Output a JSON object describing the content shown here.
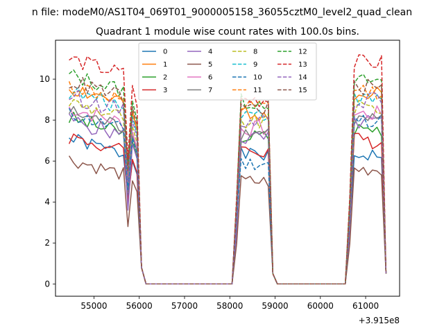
{
  "figure": {
    "suptitle": "n file: modeM0/AS1T04_069T01_9000005158_36055cztM0_level2_quad_clean",
    "title": "Quadrant 1 module wise count rates with 100.0s bins.",
    "x_offset_label": "+3.915e8"
  },
  "chart_data": {
    "type": "line",
    "title": "Quadrant 1 module wise count rates with 100.0s bins.",
    "xlabel": "",
    "ylabel": "",
    "x_offset": 391500000,
    "xlim": [
      54150,
      61750
    ],
    "ylim": [
      -0.6,
      11.9
    ],
    "xticks": [
      55000,
      56000,
      57000,
      58000,
      59000,
      60000,
      61000
    ],
    "xtick_labels": [
      "55000",
      "56000",
      "57000",
      "58000",
      "59000",
      "60000",
      "61000"
    ],
    "yticks": [
      0,
      2,
      4,
      6,
      8,
      10
    ],
    "ytick_labels": [
      "0",
      "2",
      "4",
      "6",
      "8",
      "10"
    ],
    "grid": false,
    "legend_position": "top-center",
    "legend_columns": 4,
    "segments": [
      {
        "start": 54450,
        "end": 56050
      },
      {
        "start": 58150,
        "end": 58950
      },
      {
        "start": 60650,
        "end": 61450
      }
    ],
    "series": [
      {
        "name": "0",
        "color": "#1f77b4",
        "dash": "solid",
        "means": [
          6.3,
          6.3,
          6.3
        ],
        "dip": 4.2,
        "amp": 0.35,
        "seed": 1
      },
      {
        "name": "1",
        "color": "#ff7f0e",
        "dash": "solid",
        "means": [
          8.8,
          8.4,
          9.2
        ],
        "dip": 5.6,
        "amp": 0.45,
        "seed": 2
      },
      {
        "name": "2",
        "color": "#2ca02c",
        "dash": "solid",
        "means": [
          7.3,
          7.2,
          7.6
        ],
        "dip": 4.5,
        "amp": 0.4,
        "seed": 3
      },
      {
        "name": "3",
        "color": "#d62728",
        "dash": "solid",
        "means": [
          6.4,
          6.5,
          7.0
        ],
        "dip": 4.0,
        "amp": 0.4,
        "seed": 4
      },
      {
        "name": "4",
        "color": "#9467bd",
        "dash": "solid",
        "means": [
          7.2,
          7.1,
          7.9
        ],
        "dip": 3.6,
        "amp": 0.4,
        "seed": 5
      },
      {
        "name": "5",
        "color": "#8c564b",
        "dash": "solid",
        "means": [
          5.3,
          5.0,
          5.6
        ],
        "dip": 2.8,
        "amp": 0.35,
        "seed": 6
      },
      {
        "name": "6",
        "color": "#e377c2",
        "dash": "solid",
        "means": [
          7.8,
          7.6,
          8.3
        ],
        "dip": 4.6,
        "amp": 0.4,
        "seed": 7
      },
      {
        "name": "7",
        "color": "#7f7f7f",
        "dash": "solid",
        "means": [
          7.6,
          7.4,
          8.0
        ],
        "dip": 4.5,
        "amp": 0.4,
        "seed": 8
      },
      {
        "name": "8",
        "color": "#bcbd22",
        "dash": "dashed",
        "means": [
          8.1,
          7.9,
          8.6
        ],
        "dip": 5.0,
        "amp": 0.4,
        "seed": 9
      },
      {
        "name": "9",
        "color": "#17becf",
        "dash": "dashed",
        "means": [
          8.6,
          8.3,
          9.0
        ],
        "dip": 5.2,
        "amp": 0.4,
        "seed": 10
      },
      {
        "name": "10",
        "color": "#1f77b4",
        "dash": "dashed",
        "means": [
          7.5,
          5.9,
          8.0
        ],
        "dip": 4.6,
        "amp": 0.35,
        "seed": 11
      },
      {
        "name": "11",
        "color": "#ff7f0e",
        "dash": "dashed",
        "means": [
          8.9,
          8.6,
          9.4
        ],
        "dip": 5.3,
        "amp": 0.4,
        "seed": 12
      },
      {
        "name": "12",
        "color": "#2ca02c",
        "dash": "dashed",
        "means": [
          9.4,
          8.9,
          9.9
        ],
        "dip": 5.8,
        "amp": 0.4,
        "seed": 13
      },
      {
        "name": "13",
        "color": "#d62728",
        "dash": "dashed",
        "means": [
          10.2,
          9.0,
          10.8
        ],
        "dip": 6.1,
        "amp": 0.4,
        "seed": 14
      },
      {
        "name": "14",
        "color": "#9467bd",
        "dash": "dashed",
        "means": [
          8.4,
          8.0,
          9.0
        ],
        "dip": 5.0,
        "amp": 0.4,
        "seed": 15
      },
      {
        "name": "15",
        "color": "#8c564b",
        "dash": "dashed",
        "means": [
          9.1,
          8.6,
          9.6
        ],
        "dip": 5.5,
        "amp": 0.4,
        "seed": 16
      }
    ]
  }
}
